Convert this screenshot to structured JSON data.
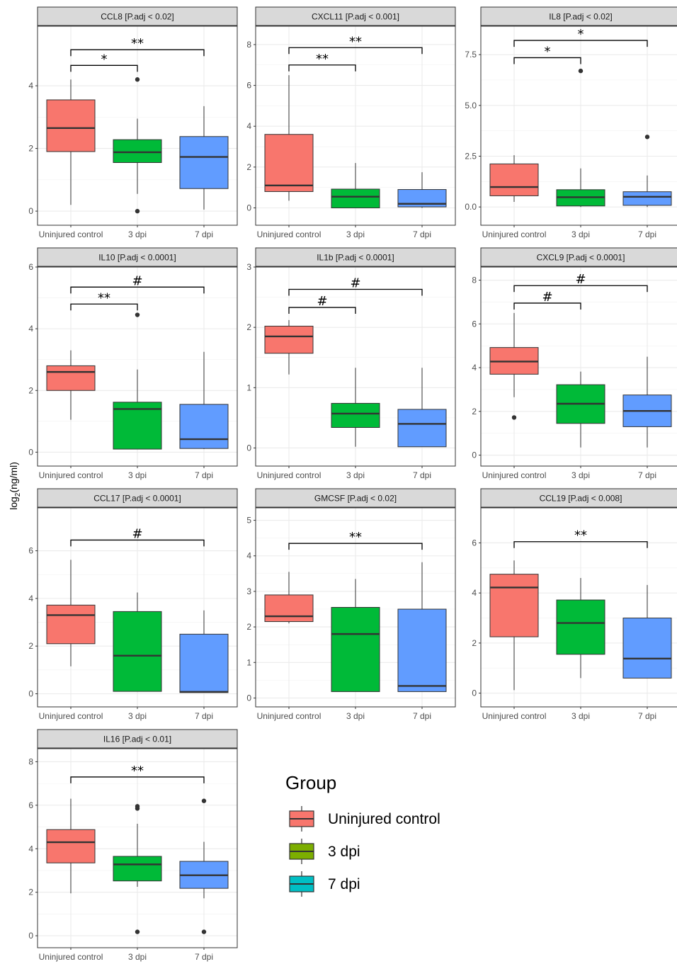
{
  "ylabel_base": "log",
  "ylabel_sub": "2",
  "ylabel_unit": "(ng/ml)",
  "legend": {
    "title": "Group",
    "items": [
      {
        "label": "Uninjured control",
        "color": "#F8766D"
      },
      {
        "label": "3 dpi",
        "color": "#7CAE00"
      },
      {
        "label": "7 dpi",
        "color": "#00BFC4"
      }
    ]
  },
  "chart_data": [
    {
      "type": "box",
      "title": "CCL8 [P.adj < 0.02]",
      "categories": [
        "Uninjured control",
        "3 dpi",
        "7 dpi"
      ],
      "ylim": [
        -0.45,
        5.9
      ],
      "yticks": [
        0,
        2,
        4
      ],
      "boxes": [
        {
          "min": 0.2,
          "q1": 1.9,
          "median": 2.65,
          "q3": 3.55,
          "max": 4.2,
          "outliers": []
        },
        {
          "min": 0.55,
          "q1": 1.55,
          "median": 1.88,
          "q3": 2.28,
          "max": 2.95,
          "outliers": [
            4.2,
            0.0
          ]
        },
        {
          "min": 0.05,
          "q1": 0.72,
          "median": 1.73,
          "q3": 2.38,
          "max": 3.35,
          "outliers": []
        }
      ],
      "brackets": [
        {
          "from": 0,
          "to": 1,
          "y": 4.65,
          "label": "*"
        },
        {
          "from": 0,
          "to": 2,
          "y": 5.15,
          "label": "**"
        }
      ]
    },
    {
      "type": "box",
      "title": "CXCL11 [P.adj < 0.001]",
      "categories": [
        "Uninjured control",
        "3 dpi",
        "7 dpi"
      ],
      "ylim": [
        -0.85,
        8.9
      ],
      "yticks": [
        0,
        2,
        4,
        6,
        8
      ],
      "boxes": [
        {
          "min": 0.35,
          "q1": 0.8,
          "median": 1.1,
          "q3": 3.6,
          "max": 6.5,
          "outliers": []
        },
        {
          "min": 0.0,
          "q1": 0.0,
          "median": 0.55,
          "q3": 0.92,
          "max": 2.2,
          "outliers": []
        },
        {
          "min": 0.0,
          "q1": 0.05,
          "median": 0.2,
          "q3": 0.9,
          "max": 1.75,
          "outliers": []
        }
      ],
      "brackets": [
        {
          "from": 0,
          "to": 1,
          "y": 7.0,
          "label": "**"
        },
        {
          "from": 0,
          "to": 2,
          "y": 7.85,
          "label": "**"
        }
      ]
    },
    {
      "type": "box",
      "title": "IL8 [P.adj < 0.02]",
      "categories": [
        "Uninjured control",
        "3 dpi",
        "7 dpi"
      ],
      "ylim": [
        -0.9,
        8.9
      ],
      "yticks": [
        0,
        2.5,
        5,
        7.5
      ],
      "ytick_labels": [
        "0.0",
        "2.5",
        "5.0",
        "7.5"
      ],
      "boxes": [
        {
          "min": 0.25,
          "q1": 0.55,
          "median": 0.98,
          "q3": 2.12,
          "max": 2.55,
          "outliers": []
        },
        {
          "min": 0.0,
          "q1": 0.05,
          "median": 0.48,
          "q3": 0.85,
          "max": 1.9,
          "outliers": [
            6.7
          ]
        },
        {
          "min": 0.0,
          "q1": 0.08,
          "median": 0.5,
          "q3": 0.75,
          "max": 1.55,
          "outliers": [
            3.45
          ]
        }
      ],
      "brackets": [
        {
          "from": 0,
          "to": 1,
          "y": 7.35,
          "label": "*"
        },
        {
          "from": 0,
          "to": 2,
          "y": 8.2,
          "label": "*"
        }
      ]
    },
    {
      "type": "box",
      "title": "IL10 [P.adj < 0.0001]",
      "categories": [
        "Uninjured control",
        "3 dpi",
        "7 dpi"
      ],
      "ylim": [
        -0.45,
        6.0
      ],
      "yticks": [
        0,
        2,
        4,
        6
      ],
      "boxes": [
        {
          "min": 1.05,
          "q1": 2.0,
          "median": 2.6,
          "q3": 2.8,
          "max": 3.3,
          "outliers": []
        },
        {
          "min": 0.1,
          "q1": 0.1,
          "median": 1.4,
          "q3": 1.62,
          "max": 2.68,
          "outliers": [
            4.45
          ]
        },
        {
          "min": 0.1,
          "q1": 0.12,
          "median": 0.42,
          "q3": 1.55,
          "max": 3.25,
          "outliers": []
        }
      ],
      "brackets": [
        {
          "from": 0,
          "to": 1,
          "y": 4.8,
          "label": "**"
        },
        {
          "from": 0,
          "to": 2,
          "y": 5.35,
          "label": "#"
        }
      ]
    },
    {
      "type": "box",
      "title": "IL1b [P.adj < 0.0001]",
      "categories": [
        "Uninjured control",
        "3 dpi",
        "7 dpi"
      ],
      "ylim": [
        -0.3,
        3.0
      ],
      "yticks": [
        0,
        1,
        2,
        3
      ],
      "boxes": [
        {
          "min": 1.22,
          "q1": 1.57,
          "median": 1.85,
          "q3": 2.02,
          "max": 2.12,
          "outliers": []
        },
        {
          "min": 0.02,
          "q1": 0.34,
          "median": 0.57,
          "q3": 0.74,
          "max": 1.33,
          "outliers": []
        },
        {
          "min": 0.02,
          "q1": 0.02,
          "median": 0.4,
          "q3": 0.64,
          "max": 1.33,
          "outliers": []
        }
      ],
      "brackets": [
        {
          "from": 0,
          "to": 1,
          "y": 2.33,
          "label": "#"
        },
        {
          "from": 0,
          "to": 2,
          "y": 2.63,
          "label": "#"
        }
      ]
    },
    {
      "type": "box",
      "title": "CXCL9 [P.adj < 0.0001]",
      "categories": [
        "Uninjured control",
        "3 dpi",
        "7 dpi"
      ],
      "ylim": [
        -0.5,
        8.6
      ],
      "yticks": [
        0,
        2,
        4,
        6,
        8
      ],
      "boxes": [
        {
          "min": 2.65,
          "q1": 3.7,
          "median": 4.28,
          "q3": 4.92,
          "max": 6.5,
          "outliers": [
            1.72
          ]
        },
        {
          "min": 0.35,
          "q1": 1.45,
          "median": 2.35,
          "q3": 3.22,
          "max": 3.82,
          "outliers": []
        },
        {
          "min": 0.35,
          "q1": 1.3,
          "median": 2.02,
          "q3": 2.75,
          "max": 4.5,
          "outliers": []
        }
      ],
      "brackets": [
        {
          "from": 0,
          "to": 1,
          "y": 6.95,
          "label": "#"
        },
        {
          "from": 0,
          "to": 2,
          "y": 7.75,
          "label": "#"
        }
      ]
    },
    {
      "type": "box",
      "title": "CCL17 [P.adj < 0.0001]",
      "categories": [
        "Uninjured control",
        "3 dpi",
        "7 dpi"
      ],
      "ylim": [
        -0.55,
        7.8
      ],
      "yticks": [
        0,
        2,
        4,
        6
      ],
      "boxes": [
        {
          "min": 1.15,
          "q1": 2.1,
          "median": 3.3,
          "q3": 3.72,
          "max": 5.62,
          "outliers": []
        },
        {
          "min": 0.1,
          "q1": 0.1,
          "median": 1.6,
          "q3": 3.45,
          "max": 4.25,
          "outliers": []
        },
        {
          "min": 0.05,
          "q1": 0.05,
          "median": 0.08,
          "q3": 2.5,
          "max": 3.5,
          "outliers": []
        }
      ],
      "brackets": [
        {
          "from": 0,
          "to": 2,
          "y": 6.45,
          "label": "#"
        }
      ]
    },
    {
      "type": "box",
      "title": "GMCSF [P.adj < 0.02]",
      "categories": [
        "Uninjured control",
        "3 dpi",
        "7 dpi"
      ],
      "ylim": [
        -0.25,
        5.35
      ],
      "yticks": [
        0,
        1,
        2,
        3,
        4,
        5
      ],
      "boxes": [
        {
          "min": 2.1,
          "q1": 2.15,
          "median": 2.3,
          "q3": 2.9,
          "max": 3.55,
          "outliers": []
        },
        {
          "min": 0.18,
          "q1": 0.18,
          "median": 1.8,
          "q3": 2.55,
          "max": 3.35,
          "outliers": []
        },
        {
          "min": 0.18,
          "q1": 0.18,
          "median": 0.34,
          "q3": 2.5,
          "max": 3.82,
          "outliers": []
        }
      ],
      "brackets": [
        {
          "from": 0,
          "to": 2,
          "y": 4.35,
          "label": "**"
        }
      ]
    },
    {
      "type": "box",
      "title": "CCL19 [P.adj < 0.008]",
      "categories": [
        "Uninjured control",
        "3 dpi",
        "7 dpi"
      ],
      "ylim": [
        -0.55,
        7.4
      ],
      "yticks": [
        0,
        2,
        4,
        6
      ],
      "boxes": [
        {
          "min": 0.12,
          "q1": 2.25,
          "median": 4.22,
          "q3": 4.75,
          "max": 5.3,
          "outliers": []
        },
        {
          "min": 0.6,
          "q1": 1.55,
          "median": 2.8,
          "q3": 3.72,
          "max": 4.6,
          "outliers": []
        },
        {
          "min": 0.6,
          "q1": 0.6,
          "median": 1.38,
          "q3": 3.0,
          "max": 4.32,
          "outliers": []
        }
      ],
      "brackets": [
        {
          "from": 0,
          "to": 2,
          "y": 6.05,
          "label": "**"
        }
      ]
    },
    {
      "type": "box",
      "title": "IL16 [P.adj < 0.01]",
      "categories": [
        "Uninjured control",
        "3 dpi",
        "7 dpi"
      ],
      "ylim": [
        -0.55,
        8.6
      ],
      "yticks": [
        0,
        2,
        4,
        6,
        8
      ],
      "boxes": [
        {
          "min": 1.95,
          "q1": 3.35,
          "median": 4.3,
          "q3": 4.88,
          "max": 6.3,
          "outliers": []
        },
        {
          "min": 2.25,
          "q1": 2.52,
          "median": 3.28,
          "q3": 3.65,
          "max": 5.15,
          "outliers": [
            5.85,
            5.95,
            0.18
          ]
        },
        {
          "min": 1.72,
          "q1": 2.18,
          "median": 2.78,
          "q3": 3.42,
          "max": 4.32,
          "outliers": [
            6.2,
            0.18
          ]
        }
      ],
      "brackets": [
        {
          "from": 0,
          "to": 2,
          "y": 7.3,
          "label": "**"
        }
      ]
    }
  ]
}
